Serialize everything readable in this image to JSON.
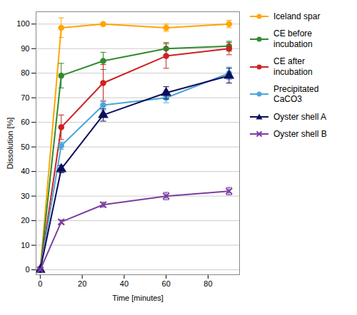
{
  "chart_data": {
    "type": "line",
    "xlabel": "Time [minutes]",
    "ylabel": "Dissolution [%]",
    "x": [
      0,
      10,
      30,
      60,
      90
    ],
    "series": [
      {
        "name": "Iceland spar",
        "color": "#FFA500",
        "marker": "circle",
        "values": [
          0,
          98.5,
          100,
          98.5,
          100
        ],
        "yerr": [
          0.5,
          4.0,
          0.3,
          1.5,
          1.5
        ]
      },
      {
        "name": "CE before\nincubation",
        "color": "#2E8B2E",
        "marker": "circle",
        "values": [
          0,
          79,
          85,
          90,
          91
        ],
        "yerr": [
          0.3,
          5.0,
          3.5,
          2.5,
          2.0
        ]
      },
      {
        "name": "CE after\nincubation",
        "color": "#CC2222",
        "marker": "circle",
        "values": [
          0,
          58,
          76,
          87,
          90
        ],
        "yerr": [
          0.3,
          5.0,
          7.5,
          5.0,
          2.5
        ]
      },
      {
        "name": "Precipitated\nCaCO3",
        "color": "#4BA6D8",
        "marker": "circle",
        "values": [
          0,
          50.5,
          67,
          70,
          80
        ],
        "yerr": [
          0.3,
          1.5,
          2.0,
          2.0,
          2.5
        ]
      },
      {
        "name": "Oyster shell A",
        "color": "#0D0D5E",
        "marker": "triangle",
        "values": [
          0,
          41,
          63,
          72,
          79
        ],
        "yerr": [
          0.3,
          1.5,
          2.5,
          2.5,
          3.0
        ]
      },
      {
        "name": "Oyster shell B",
        "color": "#7B3FA0",
        "marker": "x",
        "values": [
          0,
          19.5,
          26.5,
          30,
          32
        ],
        "yerr": [
          0.3,
          0.8,
          1.0,
          1.5,
          1.5
        ]
      }
    ],
    "xlim": [
      -2,
      95
    ],
    "ylim": [
      -2,
      105
    ],
    "xticks": [
      0,
      20,
      40,
      60,
      80
    ],
    "yticks": [
      0,
      10,
      20,
      30,
      40,
      50,
      60,
      70,
      80,
      90,
      100
    ],
    "grid": "y",
    "legend": "right"
  }
}
